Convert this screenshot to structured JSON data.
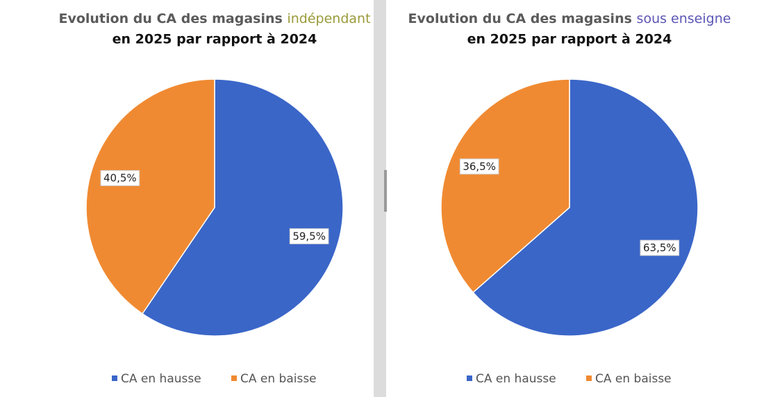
{
  "chart_data": [
    {
      "type": "pie",
      "title": "Evolution du CA des magasins",
      "title_highlight": "indépendant",
      "highlight_color": "#9a9a3a",
      "subtitle": "en 2025 par rapport à 2024",
      "categories": [
        "CA en hausse",
        "CA en baisse"
      ],
      "values": [
        59.5,
        40.5
      ],
      "value_labels": [
        "59,5%",
        "40,5%"
      ],
      "colors": [
        "#3a66c8",
        "#f08a32"
      ]
    },
    {
      "type": "pie",
      "title": "Evolution du CA des magasins",
      "title_highlight": "sous enseigne",
      "highlight_color": "#5b55b5",
      "subtitle": "en 2025 par rapport à 2024",
      "categories": [
        "CA en hausse",
        "CA en baisse"
      ],
      "values": [
        63.5,
        36.5
      ],
      "value_labels": [
        "63,5%",
        "36,5%"
      ],
      "colors": [
        "#3a66c8",
        "#f08a32"
      ]
    }
  ]
}
